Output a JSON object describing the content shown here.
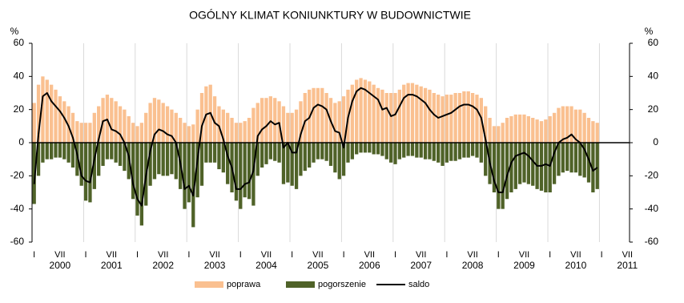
{
  "chart_data": {
    "type": "bar",
    "title": "OGÓLNY KLIMAT KONIUNKTURY W BUDOWNICTWIE",
    "y_unit": "%",
    "categories": [
      "I",
      null,
      null,
      null,
      null,
      null,
      "VII",
      null,
      null,
      null,
      null,
      null,
      "I",
      null,
      null,
      null,
      null,
      null,
      "VII",
      null,
      null,
      null,
      null,
      null,
      "I",
      null,
      null,
      null,
      null,
      null,
      "VII",
      null,
      null,
      null,
      null,
      null,
      "I",
      null,
      null,
      null,
      null,
      null,
      "VII",
      null,
      null,
      null,
      null,
      null,
      "I",
      null,
      null,
      null,
      null,
      null,
      "VII",
      null,
      null,
      null,
      null,
      null,
      "I",
      null,
      null,
      null,
      null,
      null,
      "VII",
      null,
      null,
      null,
      null,
      null,
      "I",
      null,
      null,
      null,
      null,
      null,
      "VII",
      null,
      null,
      null,
      null,
      null,
      "I",
      null,
      null,
      null,
      null,
      null,
      "VII",
      null,
      null,
      null,
      null,
      null,
      "I",
      null,
      null,
      null,
      null,
      null,
      "VII",
      null,
      null,
      null,
      null,
      null,
      "I",
      null,
      null,
      null,
      null,
      null,
      "VII",
      null,
      null,
      null,
      null,
      null,
      "I",
      null,
      null,
      null,
      null,
      null,
      "VII",
      null,
      null,
      null,
      null,
      null,
      "I",
      null,
      null,
      null,
      null,
      null,
      "VII"
    ],
    "x_group_labels": [
      "2000",
      "2001",
      "2002",
      "2003",
      "2004",
      "2005",
      "2006",
      "2007",
      "2008",
      "2009",
      "2010",
      "2011"
    ],
    "series": [
      {
        "name": "poprawa",
        "color": "#fac090",
        "values": [
          24,
          35,
          40,
          38,
          35,
          32,
          28,
          25,
          22,
          18,
          13,
          12,
          12,
          12,
          18,
          22,
          27,
          29,
          27,
          25,
          22,
          20,
          16,
          12,
          10,
          12,
          18,
          24,
          27,
          26,
          24,
          22,
          20,
          18,
          15,
          12,
          10,
          11,
          20,
          30,
          34,
          35,
          28,
          22,
          20,
          18,
          15,
          12,
          12,
          13,
          15,
          21,
          24,
          27,
          27,
          28,
          27,
          25,
          22,
          18,
          18,
          20,
          25,
          30,
          32,
          33,
          33,
          33,
          30,
          27,
          24,
          25,
          28,
          32,
          35,
          38,
          39,
          38,
          37,
          35,
          33,
          32,
          30,
          30,
          30,
          32,
          35,
          36,
          36,
          35,
          34,
          33,
          32,
          30,
          29,
          28,
          29,
          29,
          30,
          30,
          31,
          31,
          30,
          29,
          27,
          22,
          15,
          10,
          10,
          12,
          15,
          16,
          17,
          17,
          17,
          16,
          15,
          14,
          13,
          14,
          16,
          18,
          21,
          22,
          22,
          22,
          20,
          20,
          18,
          15,
          13,
          12,
          null,
          null,
          null,
          null,
          null,
          null,
          null
        ]
      },
      {
        "name": "pogorszenie",
        "color": "#4f6228",
        "values": [
          -37,
          -20,
          -12,
          -10,
          -10,
          -9,
          -9,
          -10,
          -12,
          -15,
          -20,
          -26,
          -35,
          -36,
          -28,
          -20,
          -14,
          -10,
          -10,
          -12,
          -14,
          -17,
          -22,
          -34,
          -44,
          -50,
          -38,
          -26,
          -22,
          -19,
          -20,
          -20,
          -19,
          -22,
          -28,
          -40,
          -36,
          -51,
          -33,
          -26,
          -12,
          -12,
          -12,
          -16,
          -18,
          -25,
          -30,
          -35,
          -40,
          -33,
          -34,
          -38,
          -20,
          -15,
          -13,
          -10,
          -11,
          -12,
          -25,
          -24,
          -26,
          -28,
          -20,
          -17,
          -15,
          -12,
          -10,
          -10,
          -11,
          -14,
          -18,
          -22,
          -20,
          -12,
          -10,
          -7,
          -6,
          -6,
          -6,
          -7,
          -7,
          -8,
          -10,
          -12,
          -13,
          -10,
          -9,
          -8,
          -8,
          -9,
          -9,
          -10,
          -10,
          -11,
          -12,
          -14,
          -12,
          -11,
          -11,
          -10,
          -9,
          -9,
          -8,
          -9,
          -12,
          -20,
          -25,
          -30,
          -40,
          -40,
          -34,
          -30,
          -28,
          -25,
          -24,
          -25,
          -26,
          -28,
          -29,
          -30,
          -30,
          -25,
          -20,
          -18,
          -17,
          -18,
          -18,
          -20,
          -21,
          -24,
          -30,
          -28,
          null,
          null,
          null,
          null,
          null,
          null,
          null
        ]
      },
      {
        "name": "saldo",
        "color": "#000000",
        "type": "line",
        "values": [
          -25,
          5,
          28,
          30,
          25,
          22,
          19,
          15,
          10,
          3,
          -7,
          -20,
          -23,
          -24,
          -10,
          2,
          13,
          14,
          8,
          7,
          5,
          0,
          -8,
          -25,
          -34,
          -38,
          -20,
          -5,
          5,
          8,
          7,
          5,
          4,
          0,
          -12,
          -28,
          -26,
          -32,
          -10,
          10,
          17,
          18,
          12,
          10,
          2,
          -8,
          -15,
          -28,
          -28,
          -25,
          -24,
          -17,
          4,
          8,
          10,
          13,
          11,
          12,
          -3,
          0,
          -6,
          -6,
          5,
          13,
          15,
          21,
          23,
          22,
          20,
          13,
          7,
          6,
          -3,
          15,
          25,
          31,
          33,
          32,
          30,
          28,
          26,
          20,
          21,
          16,
          17,
          22,
          27,
          29,
          29,
          28,
          26,
          24,
          20,
          17,
          15,
          16,
          17,
          18,
          20,
          22,
          23,
          23,
          22,
          20,
          15,
          2,
          -12,
          -23,
          -30,
          -30,
          -20,
          -12,
          -8,
          -7,
          -6,
          -8,
          -11,
          -14,
          -14,
          -13,
          -14,
          -6,
          0,
          2,
          3,
          5,
          2,
          0,
          -4,
          -10,
          -17,
          -15,
          null,
          null,
          null,
          null,
          null,
          null,
          null
        ]
      }
    ],
    "ylim": [
      -60,
      60
    ],
    "yticks": [
      -60,
      -40,
      -20,
      0,
      20,
      40,
      60
    ],
    "y2lim": [
      -60,
      60
    ],
    "y2ticks": [
      -60,
      -40,
      -20,
      0,
      20,
      40,
      60
    ]
  }
}
